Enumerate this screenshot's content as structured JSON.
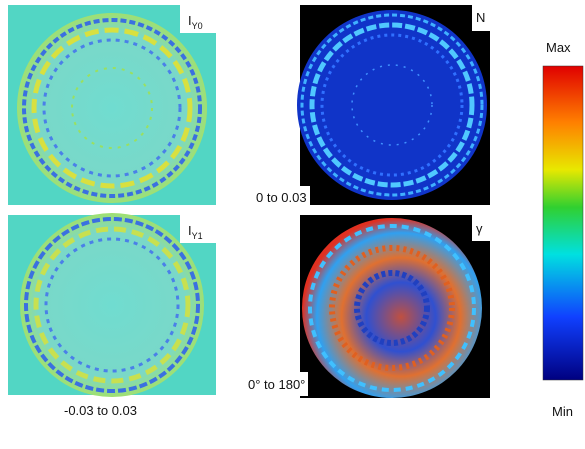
{
  "panels": [
    {
      "label": "I",
      "subscript": "Y0"
    },
    {
      "label": "N",
      "range": "0 to 0.03"
    },
    {
      "label": "I",
      "subscript": "Y1"
    },
    {
      "label": "γ",
      "range": "0° to 180°"
    }
  ],
  "shared_range": "-0.03 to 0.03",
  "colorbar": {
    "max_label": "Max",
    "min_label": "Min"
  }
}
